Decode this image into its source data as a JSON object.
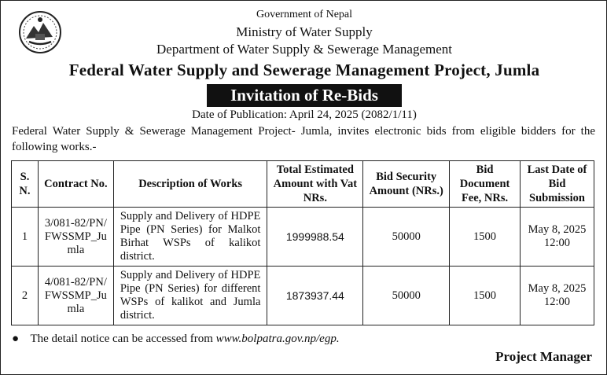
{
  "header": {
    "line1": "Government of Nepal",
    "line2": "Ministry of Water Supply",
    "line3": "Department of Water Supply & Sewerage Management",
    "project": "Federal Water Supply and Sewerage Management Project,  Jumla",
    "banner": "Invitation of  Re-Bids",
    "publication_date": "Date of Publication: April 24, 2025 (2082/1/11)"
  },
  "intro": "Federal Water Supply & Sewerage Management Project- Jumla, invites electronic bids from eligible bidders for the following works.-",
  "table": {
    "headers": {
      "sn": "S. N.",
      "contract": "Contract No.",
      "description": "Description of Works",
      "amount": "Total Estimated Amount with Vat NRs.",
      "security": "Bid Security Amount (NRs.)",
      "fee": "Bid Document Fee, NRs.",
      "last_date": "Last Date of Bid Submission"
    },
    "rows": [
      {
        "sn": "1",
        "contract": "3/081-82/PN/FWSSMP_Jumla",
        "description": "Supply and Delivery of HDPE Pipe (PN Series) for Malkot Birhat WSPs of kalikot district.",
        "amount": "1999988.54",
        "security": "50000",
        "fee": "1500",
        "last_date": "May 8, 2025 12:00"
      },
      {
        "sn": "2",
        "contract": "4/081-82/PN/FWSSMP_Jumla",
        "description": "Supply and Delivery of HDPE Pipe (PN Series) for different WSPs of kalikot and Jumla district.",
        "amount": "1873937.44",
        "security": "50000",
        "fee": "1500",
        "last_date": "May 8, 2025 12:00"
      }
    ]
  },
  "note": {
    "text": "The detail notice can be accessed from ",
    "link": "www.bolpatra.gov.np/egp."
  },
  "signatory": "Project Manager",
  "icons": {
    "emblem": "nepal-emblem-icon",
    "bullet": "bullet-icon"
  }
}
